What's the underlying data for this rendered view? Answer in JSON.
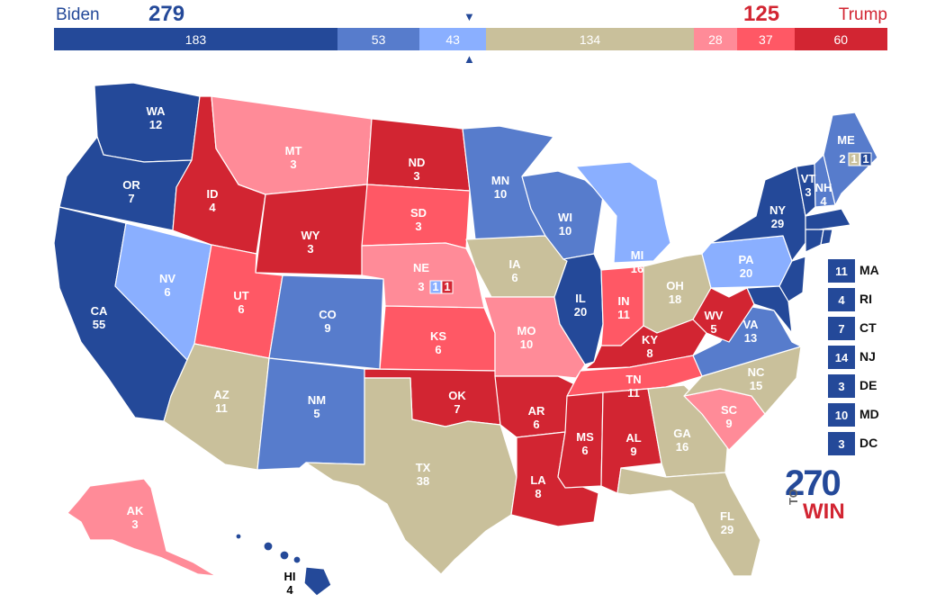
{
  "header": {
    "dem_name": "Biden",
    "dem_total": "279",
    "rep_name": "Trump",
    "rep_total": "125",
    "arrow_down": "▼",
    "arrow_up": "▲"
  },
  "bar": [
    {
      "label": "183",
      "value": 183,
      "color": "#244999"
    },
    {
      "label": "53",
      "value": 53,
      "color": "#577ccc"
    },
    {
      "label": "43",
      "value": 43,
      "color": "#8aafff"
    },
    {
      "label": "134",
      "value": 134,
      "color": "#c9c09b"
    },
    {
      "label": "28",
      "value": 28,
      "color": "#ff8b98"
    },
    {
      "label": "37",
      "value": 37,
      "color": "#ff5865"
    },
    {
      "label": "60",
      "value": 60,
      "color": "#d22532"
    }
  ],
  "colors": {
    "safe_d": "#244999",
    "likely_d": "#577ccc",
    "lean_d": "#8aafff",
    "tossup": "#c9c09b",
    "lean_r": "#ff8b98",
    "likely_r": "#ff5865",
    "safe_r": "#d22532"
  },
  "states": {
    "WA": {
      "abbr": "WA",
      "ev": "12"
    },
    "OR": {
      "abbr": "OR",
      "ev": "7"
    },
    "CA": {
      "abbr": "CA",
      "ev": "55"
    },
    "NV": {
      "abbr": "NV",
      "ev": "6"
    },
    "ID": {
      "abbr": "ID",
      "ev": "4"
    },
    "MT": {
      "abbr": "MT",
      "ev": "3"
    },
    "WY": {
      "abbr": "WY",
      "ev": "3"
    },
    "UT": {
      "abbr": "UT",
      "ev": "6"
    },
    "AZ": {
      "abbr": "AZ",
      "ev": "11"
    },
    "CO": {
      "abbr": "CO",
      "ev": "9"
    },
    "NM": {
      "abbr": "NM",
      "ev": "5"
    },
    "ND": {
      "abbr": "ND",
      "ev": "3"
    },
    "SD": {
      "abbr": "SD",
      "ev": "3"
    },
    "NE": {
      "abbr": "NE",
      "ev": "3"
    },
    "KS": {
      "abbr": "KS",
      "ev": "6"
    },
    "OK": {
      "abbr": "OK",
      "ev": "7"
    },
    "TX": {
      "abbr": "TX",
      "ev": "38"
    },
    "MN": {
      "abbr": "MN",
      "ev": "10"
    },
    "IA": {
      "abbr": "IA",
      "ev": "6"
    },
    "MO": {
      "abbr": "MO",
      "ev": "10"
    },
    "AR": {
      "abbr": "AR",
      "ev": "6"
    },
    "LA": {
      "abbr": "LA",
      "ev": "8"
    },
    "WI": {
      "abbr": "WI",
      "ev": "10"
    },
    "IL": {
      "abbr": "IL",
      "ev": "20"
    },
    "MI": {
      "abbr": "MI",
      "ev": "16"
    },
    "IN": {
      "abbr": "IN",
      "ev": "11"
    },
    "OH": {
      "abbr": "OH",
      "ev": "18"
    },
    "KY": {
      "abbr": "KY",
      "ev": "8"
    },
    "TN": {
      "abbr": "TN",
      "ev": "11"
    },
    "MS": {
      "abbr": "MS",
      "ev": "6"
    },
    "AL": {
      "abbr": "AL",
      "ev": "9"
    },
    "GA": {
      "abbr": "GA",
      "ev": "16"
    },
    "FL": {
      "abbr": "FL",
      "ev": "29"
    },
    "SC": {
      "abbr": "SC",
      "ev": "9"
    },
    "NC": {
      "abbr": "NC",
      "ev": "15"
    },
    "VA": {
      "abbr": "VA",
      "ev": "13"
    },
    "WV": {
      "abbr": "WV",
      "ev": "5"
    },
    "PA": {
      "abbr": "PA",
      "ev": "20"
    },
    "NY": {
      "abbr": "NY",
      "ev": "29"
    },
    "VT": {
      "abbr": "VT",
      "ev": "3"
    },
    "NH": {
      "abbr": "NH",
      "ev": "4"
    },
    "ME": {
      "abbr": "ME",
      "ev": "2"
    },
    "AK": {
      "abbr": "AK",
      "ev": "3"
    },
    "HI": {
      "abbr": "HI",
      "ev": "4"
    }
  },
  "districts": {
    "ne_3": "3",
    "ne_cd2": "1",
    "ne_cd1": "1",
    "me_cd2": "1",
    "me_cd1": "1"
  },
  "small_states": [
    {
      "ev": "11",
      "abbr": "MA"
    },
    {
      "ev": "4",
      "abbr": "RI"
    },
    {
      "ev": "7",
      "abbr": "CT"
    },
    {
      "ev": "14",
      "abbr": "NJ"
    },
    {
      "ev": "3",
      "abbr": "DE"
    },
    {
      "ev": "10",
      "abbr": "MD"
    },
    {
      "ev": "3",
      "abbr": "DC"
    }
  ],
  "logo": {
    "number": "270",
    "to": "TO",
    "win": "WIN"
  }
}
